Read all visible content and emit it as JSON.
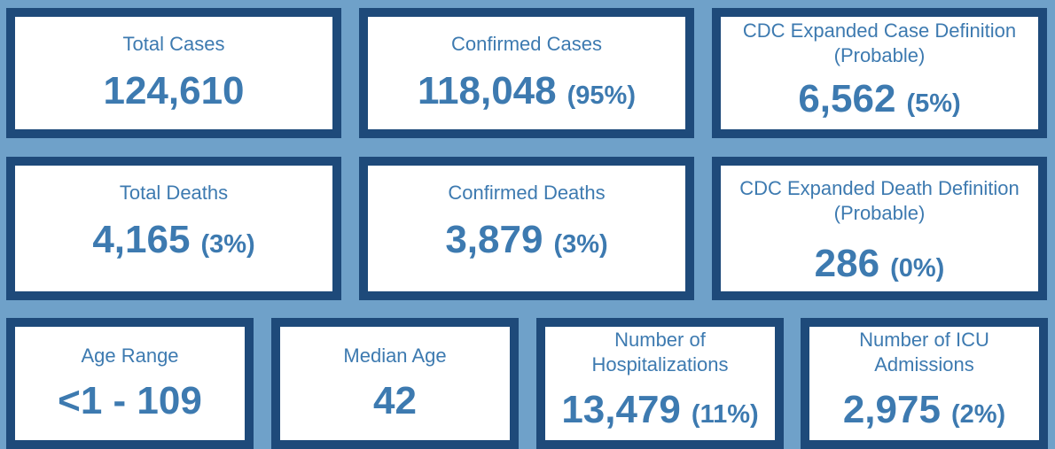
{
  "colors": {
    "background": "#6fa1c9",
    "card_border": "#1e4a7a",
    "card_fill": "#ffffff",
    "text": "#3d7ab0"
  },
  "cards": [
    {
      "label": "Total Cases",
      "value": "124,610",
      "pct": ""
    },
    {
      "label": "Confirmed Cases",
      "value": "118,048",
      "pct": "(95%)"
    },
    {
      "label": "CDC Expanded Case Definition\n(Probable)",
      "value": "6,562",
      "pct": "(5%)"
    },
    {
      "label": "Total Deaths",
      "value": "4,165",
      "pct": "(3%)"
    },
    {
      "label": "Confirmed Deaths",
      "value": "3,879",
      "pct": "(3%)"
    },
    {
      "label": "CDC Expanded Death Definition\n(Probable)",
      "value": "286",
      "pct": "(0%)"
    },
    {
      "label": "Age Range",
      "value": "<1 - 109",
      "pct": ""
    },
    {
      "label": "Median Age",
      "value": "42",
      "pct": ""
    },
    {
      "label": "Number of\nHospitalizations",
      "value": "13,479",
      "pct": "(11%)"
    },
    {
      "label": "Number of ICU\nAdmissions",
      "value": "2,975",
      "pct": "(2%)"
    }
  ]
}
